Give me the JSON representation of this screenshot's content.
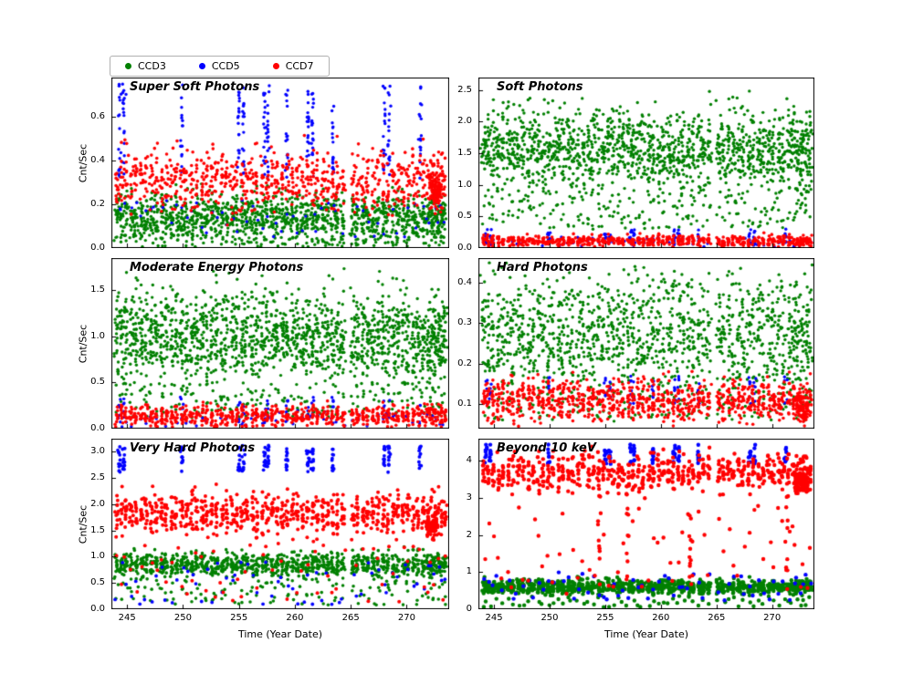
{
  "legend": {
    "items": [
      {
        "label": "CCD3",
        "color": "#008000"
      },
      {
        "label": "CCD5",
        "color": "#0000ff"
      },
      {
        "label": "CCD7",
        "color": "#ff0000"
      }
    ]
  },
  "axes": {
    "xlabel": "Time (Year Date)",
    "ylabel": "Cnt/Sec",
    "xlim": [
      243.6,
      273.8
    ],
    "xticks": [
      245,
      250,
      255,
      260,
      265,
      270
    ]
  },
  "x_clusters": {
    "all": [
      244.1,
      244.5,
      244.9,
      245.4,
      245.8,
      246.3,
      246.7,
      247.2,
      247.6,
      248.1,
      248.5,
      249.0,
      249.4,
      249.9,
      250.3,
      250.8,
      251.2,
      251.7,
      252.1,
      252.6,
      253.0,
      253.5,
      253.9,
      254.4,
      254.8,
      255.3,
      255.7,
      256.2,
      256.6,
      257.1,
      257.5,
      258.0,
      258.4,
      258.9,
      259.3,
      259.8,
      260.2,
      260.7,
      261.1,
      261.6,
      262.0,
      262.5,
      262.9,
      263.4,
      263.8,
      264.3,
      265.2,
      265.6,
      266.1,
      266.5,
      267.0,
      267.4,
      267.9,
      268.3,
      268.8,
      269.2,
      269.7,
      270.1,
      270.6,
      271.0,
      271.5,
      271.9,
      272.2,
      272.5,
      272.8,
      273.1,
      273.4
    ],
    "spikes": [
      244.3,
      244.7,
      249.9,
      255.0,
      255.4,
      257.3,
      257.6,
      259.3,
      261.2,
      261.6,
      263.4,
      268.0,
      268.4,
      271.2
    ]
  },
  "chart_data": [
    {
      "type": "scatter",
      "title": "Super Soft Photons",
      "ylim": [
        0,
        0.78
      ],
      "yticks": [
        0,
        0.2,
        0.4,
        0.6
      ],
      "ydecimals": 1,
      "series": [
        {
          "name": "CCD3",
          "color": "#008000",
          "r": 1.7,
          "groups": [
            {
              "xs": "all",
              "sx": 0.12,
              "n": 20,
              "y": [
                0.03,
                0.25
              ],
              "dist": "normal"
            },
            {
              "xs": "all",
              "sx": 0.15,
              "n": 2,
              "y": [
                0.0,
                0.07
              ],
              "dist": "uniform"
            }
          ]
        },
        {
          "name": "CCD5",
          "color": "#0000ff",
          "r": 1.7,
          "groups": [
            {
              "xs": "spikes",
              "sx": 0.06,
              "n": 18,
              "y": [
                0.32,
                0.75
              ],
              "dist": "uniform"
            },
            {
              "xs": "all",
              "sx": 0.1,
              "n": 1,
              "y": [
                0.05,
                0.22
              ],
              "dist": "uniform"
            }
          ]
        },
        {
          "name": "CCD7",
          "color": "#ff0000",
          "r": 1.8,
          "groups": [
            {
              "xs": "all",
              "sx": 0.1,
              "n": 12,
              "y": [
                0.17,
                0.45
              ],
              "dist": "normal"
            },
            {
              "xs": [
                272.3,
                272.6,
                272.9
              ],
              "sx": 0.12,
              "n": 28,
              "y": [
                0.18,
                0.35
              ],
              "dist": "normal"
            }
          ]
        }
      ]
    },
    {
      "type": "scatter",
      "title": "Soft Photons",
      "ylim": [
        0,
        2.7
      ],
      "yticks": [
        0,
        0.5,
        1.0,
        1.5,
        2.0,
        2.5
      ],
      "ydecimals": 1,
      "series": [
        {
          "name": "CCD3",
          "color": "#008000",
          "r": 1.7,
          "groups": [
            {
              "xs": "all",
              "sx": 0.12,
              "n": 22,
              "y": [
                0.9,
                2.2
              ],
              "dist": "normal"
            },
            {
              "xs": "all",
              "sx": 0.12,
              "n": 3,
              "y": [
                0.3,
                0.95
              ],
              "dist": "uniform"
            }
          ]
        },
        {
          "name": "CCD5",
          "color": "#0000ff",
          "r": 1.7,
          "groups": [
            {
              "xs": "spikes",
              "sx": 0.06,
              "n": 8,
              "y": [
                0.05,
                0.3
              ],
              "dist": "uniform"
            },
            {
              "xs": "all",
              "sx": 0.1,
              "n": 1,
              "y": [
                0.02,
                0.18
              ],
              "dist": "uniform"
            }
          ]
        },
        {
          "name": "CCD7",
          "color": "#ff0000",
          "r": 1.8,
          "groups": [
            {
              "xs": "all",
              "sx": 0.08,
              "n": 10,
              "y": [
                0.02,
                0.2
              ],
              "dist": "normal"
            }
          ]
        }
      ]
    },
    {
      "type": "scatter",
      "title": "Moderate Energy Photons",
      "ylim": [
        0,
        1.85
      ],
      "yticks": [
        0,
        0.5,
        1.0,
        1.5
      ],
      "ydecimals": 1,
      "series": [
        {
          "name": "CCD3",
          "color": "#008000",
          "r": 1.7,
          "groups": [
            {
              "xs": "all",
              "sx": 0.12,
              "n": 24,
              "y": [
                0.5,
                1.5
              ],
              "dist": "normal"
            },
            {
              "xs": "all",
              "sx": 0.12,
              "n": 3,
              "y": [
                0.12,
                0.5
              ],
              "dist": "uniform"
            }
          ]
        },
        {
          "name": "CCD5",
          "color": "#0000ff",
          "r": 1.7,
          "groups": [
            {
              "xs": "spikes",
              "sx": 0.06,
              "n": 6,
              "y": [
                0.05,
                0.35
              ],
              "dist": "uniform"
            },
            {
              "xs": "all",
              "sx": 0.1,
              "n": 1,
              "y": [
                0.02,
                0.2
              ],
              "dist": "uniform"
            }
          ]
        },
        {
          "name": "CCD7",
          "color": "#ff0000",
          "r": 1.8,
          "groups": [
            {
              "xs": "all",
              "sx": 0.08,
              "n": 11,
              "y": [
                0.02,
                0.25
              ],
              "dist": "normal"
            }
          ]
        }
      ]
    },
    {
      "type": "scatter",
      "title": "Hard Photons",
      "ylim": [
        0.04,
        0.46
      ],
      "yticks": [
        0.1,
        0.2,
        0.3,
        0.4
      ],
      "ydecimals": 1,
      "series": [
        {
          "name": "CCD3",
          "color": "#008000",
          "r": 1.7,
          "groups": [
            {
              "xs": "all",
              "sx": 0.12,
              "n": 20,
              "y": [
                0.12,
                0.42
              ],
              "dist": "normal"
            },
            {
              "xs": "all",
              "sx": 0.12,
              "n": 2,
              "y": [
                0.06,
                0.13
              ],
              "dist": "uniform"
            }
          ]
        },
        {
          "name": "CCD5",
          "color": "#0000ff",
          "r": 1.7,
          "groups": [
            {
              "xs": "spikes",
              "sx": 0.06,
              "n": 6,
              "y": [
                0.1,
                0.17
              ],
              "dist": "uniform"
            }
          ]
        },
        {
          "name": "CCD7",
          "color": "#ff0000",
          "r": 1.8,
          "groups": [
            {
              "xs": "all",
              "sx": 0.09,
              "n": 14,
              "y": [
                0.06,
                0.16
              ],
              "dist": "normal"
            },
            {
              "xs": [
                272.3,
                272.7,
                273.0
              ],
              "sx": 0.12,
              "n": 20,
              "y": [
                0.05,
                0.12
              ],
              "dist": "normal"
            }
          ]
        }
      ]
    },
    {
      "type": "scatter",
      "title": "Very Hard Photons",
      "ylim": [
        0,
        3.25
      ],
      "yticks": [
        0,
        0.5,
        1.0,
        1.5,
        2.0,
        2.5,
        3.0
      ],
      "ydecimals": 1,
      "series": [
        {
          "name": "CCD3",
          "color": "#008000",
          "r": 1.8,
          "groups": [
            {
              "xs": "all",
              "sx": 0.1,
              "n": 16,
              "y": [
                0.62,
                1.08
              ],
              "dist": "normal"
            },
            {
              "xs": "all",
              "sx": 0.12,
              "n": 2,
              "y": [
                0.08,
                0.6
              ],
              "dist": "uniform"
            }
          ]
        },
        {
          "name": "CCD5",
          "color": "#0000ff",
          "r": 1.9,
          "groups": [
            {
              "xs": "spikes",
              "sx": 0.06,
              "n": 12,
              "y": [
                2.6,
                3.12
              ],
              "dist": "uniform"
            },
            {
              "xs": "all",
              "sx": 0.1,
              "n": 1,
              "y": [
                0.05,
                0.9
              ],
              "dist": "uniform"
            }
          ]
        },
        {
          "name": "CCD7",
          "color": "#ff0000",
          "r": 2.0,
          "groups": [
            {
              "xs": "all",
              "sx": 0.08,
              "n": 12,
              "y": [
                1.45,
                2.2
              ],
              "dist": "normal"
            },
            {
              "xs": "all",
              "sx": 0.1,
              "n": 1,
              "y": [
                0.1,
                1.35
              ],
              "dist": "uniform"
            },
            {
              "xs": [
                271.9,
                272.2,
                272.5
              ],
              "sx": 0.12,
              "n": 20,
              "y": [
                1.4,
                1.8
              ],
              "dist": "normal"
            }
          ]
        }
      ]
    },
    {
      "type": "scatter",
      "title": "Beyond 10 keV",
      "ylim": [
        0,
        4.6
      ],
      "yticks": [
        0,
        1,
        2,
        3,
        4
      ],
      "ydecimals": 0,
      "series": [
        {
          "name": "CCD3",
          "color": "#008000",
          "r": 2.2,
          "groups": [
            {
              "xs": "all",
              "sx": 0.1,
              "n": 14,
              "y": [
                0.42,
                0.8
              ],
              "dist": "normal"
            },
            {
              "xs": "all",
              "sx": 0.12,
              "n": 1,
              "y": [
                0.05,
                0.35
              ],
              "dist": "uniform"
            }
          ]
        },
        {
          "name": "CCD5",
          "color": "#0000ff",
          "r": 2.2,
          "groups": [
            {
              "xs": "spikes",
              "sx": 0.05,
              "n": 8,
              "y": [
                3.9,
                4.45
              ],
              "dist": "uniform"
            },
            {
              "xs": "all",
              "sx": 0.1,
              "n": 1,
              "y": [
                0.2,
                1.0
              ],
              "dist": "uniform"
            }
          ]
        },
        {
          "name": "CCD7",
          "color": "#ff0000",
          "r": 2.2,
          "groups": [
            {
              "xs": "all",
              "sx": 0.07,
              "n": 9,
              "y": [
                3.2,
                4.2
              ],
              "dist": "normal"
            },
            {
              "xs": [
                254.5,
                257.0,
                262.6,
                271.3
              ],
              "sx": 0.08,
              "n": 12,
              "y": [
                0.5,
                3.4
              ],
              "dist": "uniform"
            },
            {
              "xs": [
                272.2,
                272.5,
                272.8,
                273.1
              ],
              "sx": 0.1,
              "n": 22,
              "y": [
                3.15,
                3.7
              ],
              "dist": "normal"
            },
            {
              "xs": "all",
              "sx": 0.1,
              "n": 1,
              "y": [
                0.4,
                2.8
              ],
              "dist": "uniform"
            }
          ]
        }
      ]
    }
  ]
}
